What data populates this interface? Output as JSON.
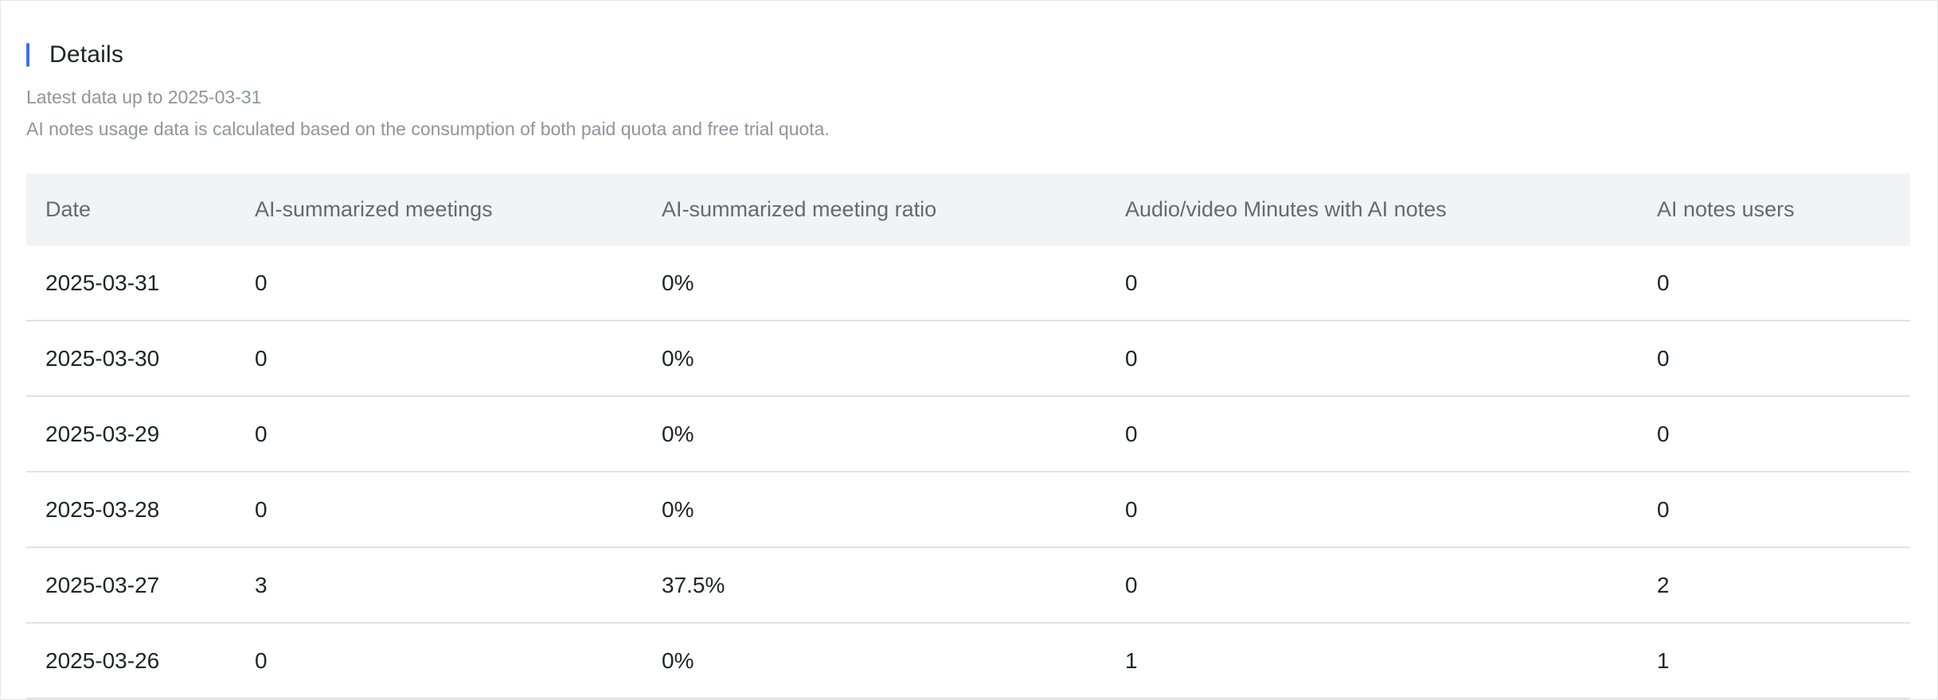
{
  "section": {
    "title": "Details",
    "accent_color": "#3370ff",
    "subtitle_date": "Latest data up to 2025-03-31",
    "subtitle_note": "AI notes usage data is calculated based on the consumption of both paid quota and free trial quota."
  },
  "table": {
    "columns": [
      "Date",
      "AI-summarized meetings",
      "AI-summarized meeting ratio",
      "Audio/video Minutes with AI notes",
      "AI notes users"
    ],
    "rows": [
      [
        "2025-03-31",
        "0",
        "0%",
        "0",
        "0"
      ],
      [
        "2025-03-30",
        "0",
        "0%",
        "0",
        "0"
      ],
      [
        "2025-03-29",
        "0",
        "0%",
        "0",
        "0"
      ],
      [
        "2025-03-28",
        "0",
        "0%",
        "0",
        "0"
      ],
      [
        "2025-03-27",
        "3",
        "37.5%",
        "0",
        "2"
      ],
      [
        "2025-03-26",
        "0",
        "0%",
        "1",
        "1"
      ]
    ]
  }
}
